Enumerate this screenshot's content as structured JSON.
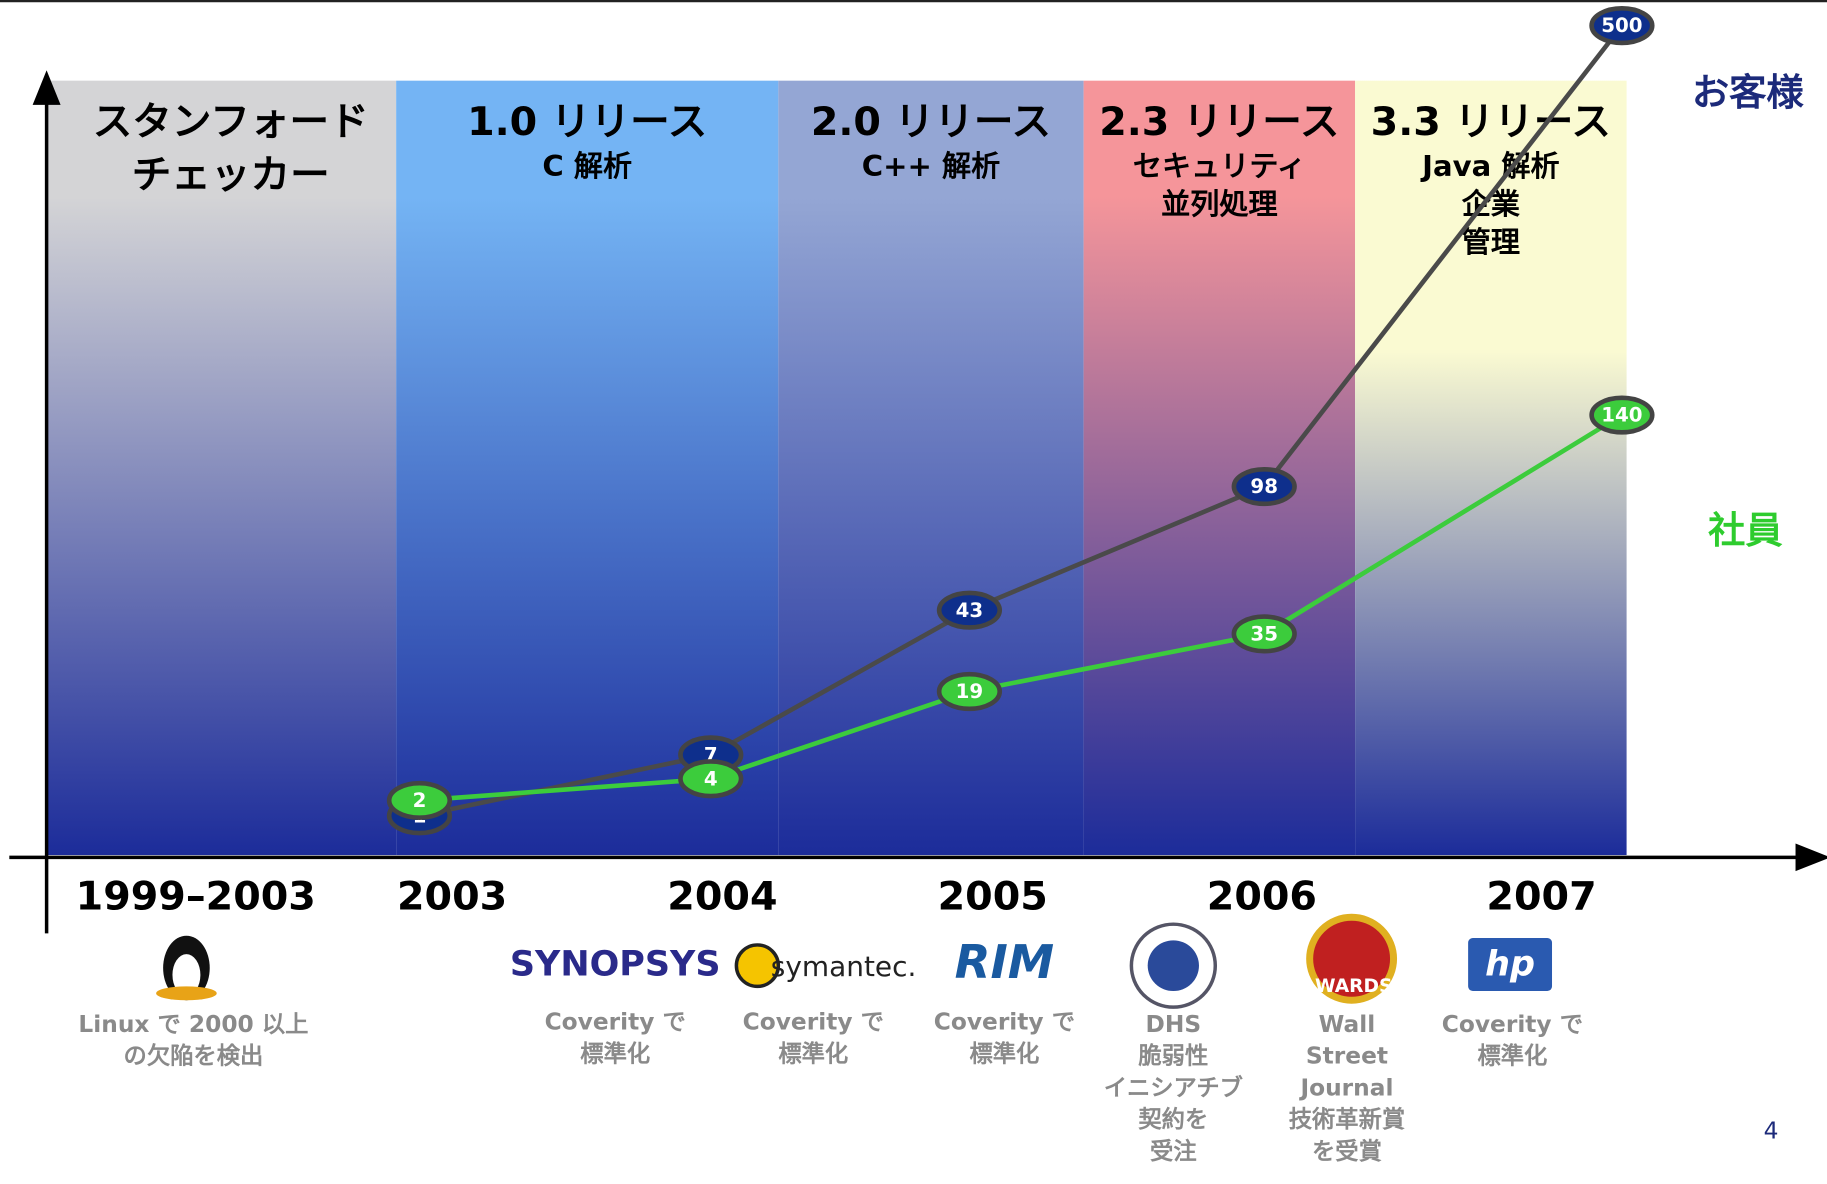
{
  "chart_data": {
    "type": "line",
    "categories": [
      "1999–2003",
      "2003",
      "2004",
      "2005",
      "2006",
      "2007"
    ],
    "series": [
      {
        "name": "お客様",
        "color": "#4a4a4a",
        "marker_color": "#0e2f8c",
        "label_color": "#1c2a7a",
        "values": [
          null,
          1,
          7,
          43,
          98,
          500
        ]
      },
      {
        "name": "社員",
        "color": "#3ccc3c",
        "marker_color": "#3ccc3c",
        "label_color": "#2ecc2e",
        "values": [
          null,
          2,
          4,
          19,
          35,
          140
        ]
      }
    ],
    "phases": [
      {
        "title": [
          "スタンフォード",
          "チェッカー"
        ],
        "subtitle": [],
        "color": "#d4d4d6"
      },
      {
        "title": [
          "1.0 リリース"
        ],
        "subtitle": [
          "C 解析"
        ],
        "color": "#74b4f4"
      },
      {
        "title": [
          "2.0 リリース"
        ],
        "subtitle": [
          "C++ 解析"
        ],
        "color": "#94a6d4"
      },
      {
        "title": [
          "2.3 リリース"
        ],
        "subtitle": [
          "セキュリティ",
          "並列処理"
        ],
        "color": "#f5959a"
      },
      {
        "title": [
          "3.3 リリース"
        ],
        "subtitle": [
          "Java 解析",
          "企業",
          "管理"
        ],
        "color": "#fafad2"
      }
    ],
    "milestones": [
      {
        "caption": [
          "Linux で 2000 以上",
          "の欠陥を検出"
        ]
      },
      {
        "logo": "SYNOPSYS",
        "caption": [
          "Coverity で",
          "標準化"
        ]
      },
      {
        "logo": "symantec.",
        "caption": [
          "Coverity で",
          "標準化"
        ]
      },
      {
        "logo": "RIM",
        "caption": [
          "Coverity で",
          "標準化"
        ]
      },
      {
        "caption": [
          "DHS",
          "脆弱性",
          "イニシアチブ",
          "契約を",
          "受注"
        ]
      },
      {
        "logo": "AWARDS",
        "caption": [
          "Wall",
          "Street",
          "Journal",
          "技術革新賞",
          "を受賞"
        ]
      },
      {
        "logo": "hp",
        "caption": [
          "Coverity で",
          "標準化"
        ]
      }
    ],
    "page_number": "4"
  }
}
